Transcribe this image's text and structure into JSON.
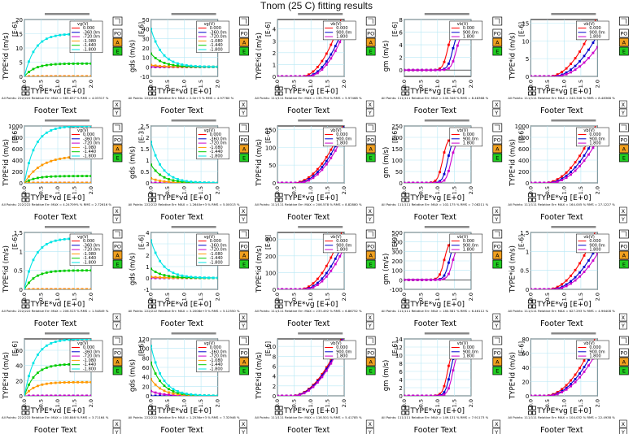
{
  "title": "Tnom (25 C) fitting results",
  "footer_text": "Footer Text",
  "side_buttons": [
    "PO",
    "A",
    "E"
  ],
  "xy_buttons": [
    "X",
    "Y"
  ],
  "colors": {
    "vd_series": [
      "#ff0000",
      "#0000cc",
      "#cc00cc",
      "#ff9900",
      "#00cc00",
      "#00e5e5"
    ],
    "vb_series": [
      "#ff0000",
      "#0000cc",
      "#cc00cc"
    ],
    "btn_po": "#ffffff",
    "btn_a": "#f0a020",
    "btn_e": "#22cc22"
  },
  "charts": [
    {
      "type": "output",
      "ylabel": "TYPE*id (m/s)",
      "yunit": "[E-6]",
      "xlabel": "TYPE*vd [E+0]",
      "yticks": [
        0,
        5,
        10,
        15,
        20
      ],
      "ymax": 20,
      "xmax": 2,
      "legend_title": "vg(V)",
      "legend": [
        "0.000",
        "-360.0m",
        "-720.0m",
        "-1.080",
        "-1.440",
        "-1.800"
      ],
      "sat": [
        0,
        0,
        0,
        0,
        4.5,
        15
      ],
      "status": "All Points: 222/222 Relative Err: MAX = 565.837 % RMS = 4.03317 %"
    },
    {
      "type": "gds",
      "ylabel": "gds (m/s)",
      "yunit": "[E-6]",
      "xlabel": "TYPE*vd [E+0]",
      "yticks": [
        -10,
        0,
        10,
        20,
        30,
        40,
        50
      ],
      "ymin": -10,
      "ymax": 50,
      "xmax": 2,
      "legend_title": "vg(V)",
      "legend": [
        "0.000",
        "-360.0m",
        "-720.0m",
        "-1.080",
        "-1.440",
        "-1.800"
      ],
      "peak": [
        0,
        0,
        0,
        2,
        14,
        40
      ],
      "status": "All Points: 222/222 Relative Err: MAX = 2.0e+3 % RMS = 4.97760 %"
    },
    {
      "type": "transfer",
      "ylabel": "TYPE*id (m/s)",
      "yunit": "[E-6]",
      "xlabel": "TYPE*vg [E+0]",
      "yticks": [
        0,
        1,
        2,
        3,
        4
      ],
      "ymax": 4.8,
      "xmax": 2,
      "legend_title": "vb(V)",
      "legend": [
        "0.000",
        "900.0m",
        "1.800"
      ],
      "vmax": [
        4.8,
        3.6,
        3.1
      ],
      "vth": [
        1.2,
        1.4,
        1.5
      ],
      "status": "All Points: 111/111 Relative Err: MAX = 135.754 % RMS = 5.97468 %"
    },
    {
      "type": "gm",
      "ylabel": "gm (m/s)",
      "yunit": "[E-6]",
      "xlabel": "TYPE*vg [E+0]",
      "yticks": [
        0,
        2,
        4,
        6,
        8
      ],
      "ymin": -1,
      "ymax": 8,
      "xmax": 2,
      "legend_title": "vb(V)",
      "legend": [
        "0.000",
        "900.0m",
        "1.800"
      ],
      "peak": [
        6.5,
        6.2,
        5.8
      ],
      "center": [
        1.3,
        1.45,
        1.55
      ],
      "status": "All Points: 111/111 Relative Err: MAX = 240.346 % RMS = 8.48368 %"
    },
    {
      "type": "transfer",
      "ylabel": "TYPE*id (m/s)",
      "yunit": "[E-6]",
      "xlabel": "TYPE*vg [E+0]",
      "yticks": [
        0,
        5,
        10,
        15
      ],
      "ymax": 16,
      "xmax": 2,
      "legend_title": "vb(V)",
      "legend": [
        "0.000",
        "900.0m",
        "1.800"
      ],
      "vmax": [
        15,
        10,
        7
      ],
      "vth": [
        0.9,
        1.1,
        1.2
      ],
      "status": "All Points: 111/111 Relative Err: MAX = 240.346 % RMS = 8.48368 %"
    },
    {
      "type": "output",
      "ylabel": "TYPE*id (m/s)",
      "yunit": "[E-6]",
      "xlabel": "TYPE*vd [E+0]",
      "yticks": [
        0,
        200,
        400,
        600,
        800,
        1000
      ],
      "ymax": 1000,
      "xmax": 2,
      "legend_title": "vg(V)",
      "legend": [
        "0.000",
        "-360.0m",
        "-720.0m",
        "-1.080",
        "-1.440",
        "-1.800"
      ],
      "sat": [
        0,
        0,
        0,
        0,
        120,
        1000
      ],
      "sat2": 480,
      "status": "All Points: 222/222 Relative Err: MAX = 4.24709% % RMS = 2.72616 %"
    },
    {
      "type": "gds",
      "ylabel": "gds (m/s)",
      "yunit": "[E-3]",
      "xlabel": "TYPE*vd [E+0]",
      "yticks": [
        0,
        0.5,
        1,
        1.5,
        2,
        2.5
      ],
      "ymin": 0,
      "ymax": 2.5,
      "xmax": 2,
      "legend_title": "vg(V)",
      "legend": [
        "0.000",
        "-360.0m",
        "-720.0m",
        "-1.080",
        "-1.440",
        "-1.800"
      ],
      "peak": [
        0,
        0,
        0,
        0.2,
        0.8,
        1.8
      ],
      "status": "All Points: 222/222 Relative Err: MAX = 1.2640e+3 % RMS = 5.00013 %"
    },
    {
      "type": "transfer",
      "ylabel": "TYPE*id (m/s)",
      "yunit": "[E-6]",
      "xlabel": "TYPE*vg [E+0]",
      "yticks": [
        0,
        50,
        100,
        150
      ],
      "ymax": 160,
      "xmax": 2,
      "legend_title": "vb(V)",
      "legend": [
        "0.000",
        "900.0m",
        "1.800"
      ],
      "vmax": [
        150,
        135,
        120
      ],
      "vth": [
        0.8,
        0.95,
        1.05
      ],
      "status": "All Points: 111/111 Relative Err: MAX = 206.578 % RMS = 8.82880 %"
    },
    {
      "type": "gm",
      "ylabel": "gm (m/s)",
      "yunit": "[E-6]",
      "xlabel": "TYPE*vg [E+0]",
      "yticks": [
        0,
        50,
        100,
        150,
        200,
        250
      ],
      "ymin": 0,
      "ymax": 250,
      "xmax": 2,
      "legend_title": "vb(V)",
      "legend": [
        "0.000",
        "900.0m",
        "1.800"
      ],
      "peak": [
        200,
        195,
        185
      ],
      "center": [
        1.15,
        1.3,
        1.4
      ],
      "status": "All Points: 111/111 Relative Err: MAX = 102.175 % RMS = 7.08211 %"
    },
    {
      "type": "transfer",
      "ylabel": "TYPE*id (m/s)",
      "yunit": "[E-6]",
      "xlabel": "TYPE*vg [E+0]",
      "yticks": [
        0,
        200,
        400,
        600,
        800,
        1000
      ],
      "ymax": 1000,
      "xmax": 2,
      "legend_title": "vb(V)",
      "legend": [
        "0.000",
        "900.0m",
        "1.800"
      ],
      "vmax": [
        950,
        780,
        650
      ],
      "vth": [
        0.7,
        0.85,
        0.95
      ],
      "status": "All Points: 111/111 Relative Err: MAX = 164.005 % RMS = 27.1227 %"
    },
    {
      "type": "output",
      "ylabel": "TYPE*id (m/s)",
      "yunit": "[E-6]",
      "xlabel": "TYPE*vd [E+0]",
      "yticks": [
        0,
        0.5,
        1,
        1.5
      ],
      "ymax": 1.5,
      "xmax": 2,
      "legend_title": "vg(V)",
      "legend": [
        "0.000",
        "-360.0m",
        "-720.0m",
        "-1.080",
        "-1.440",
        "-1.800"
      ],
      "sat": [
        0,
        0,
        0,
        0,
        0.5,
        1.35
      ],
      "status": "All Points: 222/222 Relative Err: MAX = 206.515 % RMS = 1.54849 %"
    },
    {
      "type": "gds",
      "ylabel": "gds (m/s)",
      "yunit": "[E-6]",
      "xlabel": "TYPE*vd [E+0]",
      "yticks": [
        -1,
        0,
        1,
        2,
        3,
        4
      ],
      "ymin": -1,
      "ymax": 4,
      "xmax": 2,
      "legend_title": "vg(V)",
      "legend": [
        "0.000",
        "-360.0m",
        "-720.0m",
        "-1.080",
        "-1.440",
        "-1.800"
      ],
      "peak": [
        0,
        0,
        0,
        0.1,
        0.8,
        3.3
      ],
      "status": "All Points: 222/222 Relative Err: MAX = 3.2008e+3 % RMS = 5.12550 %"
    },
    {
      "type": "transfer",
      "ylabel": "TYPE*id (m/s)",
      "yunit": "[E-9]",
      "xlabel": "TYPE*vg [E+0]",
      "yticks": [
        0,
        100,
        200,
        300
      ],
      "ymax": 340,
      "xmax": 2,
      "legend_title": "vb(V)",
      "legend": [
        "0.000",
        "900.0m",
        "1.800"
      ],
      "vmax": [
        330,
        250,
        210
      ],
      "vth": [
        1.1,
        1.25,
        1.35
      ],
      "status": "All Points: 111/111 Relative Err: MAX = 233.492 % RMS = 6.86752 %"
    },
    {
      "type": "gm",
      "ylabel": "gm (m/s)",
      "yunit": "[E-9]",
      "xlabel": "TYPE*vg [E+0]",
      "yticks": [
        -100,
        0,
        100,
        200,
        300,
        400,
        500
      ],
      "ymin": -100,
      "ymax": 500,
      "xmax": 2,
      "legend_title": "vb(V)",
      "legend": [
        "0.000",
        "900.0m",
        "1.800"
      ],
      "peak": [
        420,
        410,
        380
      ],
      "center": [
        1.2,
        1.35,
        1.45
      ],
      "status": "All Points: 111/111 Relative Err: MAX = 180.581 % RMS = 6.46112 %"
    },
    {
      "type": "transfer",
      "ylabel": "TYPE*id (m/s)",
      "yunit": "[E-6]",
      "xlabel": "TYPE*vg [E+0]",
      "yticks": [
        0,
        0.5,
        1,
        1.5
      ],
      "ymax": 1.5,
      "xmax": 2,
      "legend_title": "vb(V)",
      "legend": [
        "0.000",
        "900.0m",
        "1.800"
      ],
      "vmax": [
        1.45,
        1.0,
        0.8
      ],
      "vth": [
        0.85,
        1.0,
        1.1
      ],
      "status": "All Points: 111/111 Relative Err: MAX = 627.293 % RMS = 4.96408 %"
    },
    {
      "type": "output",
      "ylabel": "TYPE*id (m/s)",
      "yunit": "[E-6]",
      "xlabel": "TYPE*vd [E+0]",
      "yticks": [
        0,
        20,
        40,
        60
      ],
      "ymax": 75,
      "xmax": 2,
      "legend_title": "vg(V)",
      "legend": [
        "0.000",
        "-360.0m",
        "-720.0m",
        "-1.080",
        "-1.440",
        "-1.800"
      ],
      "sat": [
        0,
        0,
        0,
        18,
        42,
        75
      ],
      "status": "All Points: 222/222 Relative Err: MAX = 100.846 % RMS = 3.71164 %"
    },
    {
      "type": "gds",
      "ylabel": "gds (m/s)",
      "yunit": "[E-6]",
      "xlabel": "TYPE*vd [E+0]",
      "yticks": [
        0,
        20,
        40,
        60,
        80,
        100,
        120
      ],
      "ymin": 0,
      "ymax": 120,
      "xmax": 2,
      "legend_title": "vg(V)",
      "legend": [
        "0.000",
        "-360.0m",
        "-720.0m",
        "-1.080",
        "-1.440",
        "-1.800"
      ],
      "peak": [
        0,
        0,
        10,
        35,
        70,
        105
      ],
      "status": "All Points: 222/222 Relative Err: MAX = 1.2536e+3 % RMS = 7.32946 %"
    },
    {
      "type": "transfer",
      "ylabel": "TYPE*id (m/s)",
      "yunit": "[E-6]",
      "xlabel": "TYPE*vg [E+0]",
      "yticks": [
        0,
        2,
        4,
        6,
        8,
        10
      ],
      "ymax": 11.5,
      "xmax": 2,
      "legend_title": "vb(V)",
      "legend": [
        "0.000",
        "900.0m",
        "1.800"
      ],
      "vmax": [
        11.5,
        11,
        10.5
      ],
      "vth": [
        0.7,
        0.75,
        0.8
      ],
      "status": "All Points: 111/111 Relative Err: MAX = 116.501 % RMS = 5.41785 %"
    },
    {
      "type": "gm",
      "ylabel": "gm (m/s)",
      "yunit": "[E-6]",
      "xlabel": "TYPE*vg [E+0]",
      "yticks": [
        0,
        2,
        4,
        6,
        8,
        10,
        12,
        14
      ],
      "ymin": 0,
      "ymax": 14,
      "xmax": 2,
      "legend_title": "vb(V)",
      "legend": [
        "0.000",
        "900.0m",
        "1.800"
      ],
      "peak": [
        12,
        11.8,
        11.2
      ],
      "center": [
        1.3,
        1.38,
        1.45
      ],
      "status": "All Points: 111/111 Relative Err: MAX = 149.131 % RMS = 7.91173 %"
    },
    {
      "type": "transfer",
      "ylabel": "TYPE*id (m/s)",
      "yunit": "[E-6]",
      "xlabel": "TYPE*vg [E+0]",
      "yticks": [
        0,
        20,
        40,
        60,
        80
      ],
      "ymax": 80,
      "xmax": 2,
      "legend_title": "vb(V)",
      "legend": [
        "0.000",
        "900.0m",
        "1.800"
      ],
      "vmax": [
        78,
        65,
        55
      ],
      "vth": [
        0.7,
        0.8,
        0.85
      ],
      "status": "All Points: 111/111 Relative Err: MAX = 104.032 % RMS = 22.4938 %"
    }
  ],
  "chart_data": [
    {
      "type": "line",
      "title": "",
      "xlabel": "TYPE*vd [E+0]",
      "ylabel": "TYPE*id (m/s) [E-6]",
      "series": [
        {
          "name": "-1.440",
          "values": [
            0,
            4.5
          ]
        },
        {
          "name": "-1.800",
          "values": [
            0,
            15
          ]
        }
      ]
    }
  ]
}
